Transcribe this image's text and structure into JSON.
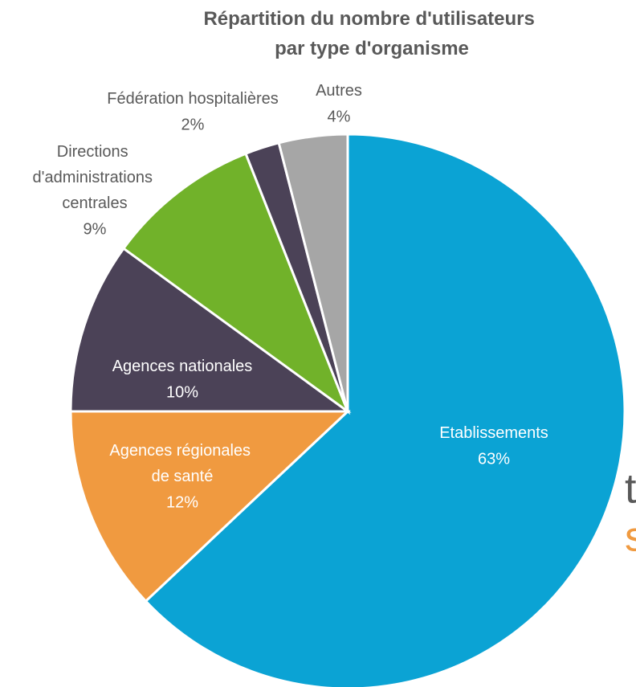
{
  "chart_data": {
    "type": "pie",
    "title": "Répartition du nombre d'utilisateurs par type d'organisme",
    "categories": [
      "Etablissements",
      "Agences régionales de santé",
      "Agences nationales",
      "Directions d'administrations centrales",
      "Fédération hospitalières",
      "Autres"
    ],
    "values": [
      63,
      12,
      10,
      9,
      2,
      4
    ],
    "value_labels": [
      "63%",
      "12%",
      "10%",
      "9%",
      "2%",
      "4%"
    ],
    "colors": [
      "#0ba3d4",
      "#f09a40",
      "#4b4257",
      "#71b22a",
      "#4b4257",
      "#a6a6a6"
    ],
    "background_text": [
      "t",
      "s"
    ]
  }
}
